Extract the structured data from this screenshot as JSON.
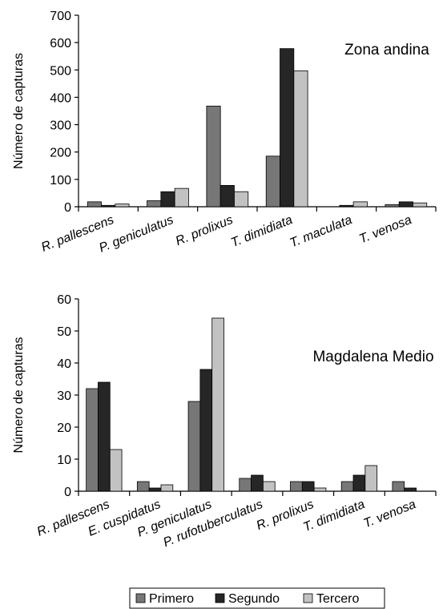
{
  "chart_data": [
    {
      "type": "bar",
      "title": "Zona andina",
      "xlabel": "",
      "ylabel": "Número de capturas",
      "ylim": [
        0,
        700
      ],
      "yticks": [
        0,
        100,
        200,
        300,
        400,
        500,
        600,
        700
      ],
      "categories": [
        "R. pallescens",
        "P. geniculatus",
        "R. prolixus",
        "T. dimidiata",
        "T. maculata",
        "T. venosa"
      ],
      "series": [
        {
          "name": "Primero",
          "values": [
            18,
            22,
            368,
            185,
            0,
            8
          ]
        },
        {
          "name": "Segundo",
          "values": [
            5,
            55,
            78,
            578,
            5,
            18
          ]
        },
        {
          "name": "Tercero",
          "values": [
            10,
            67,
            55,
            497,
            18,
            14
          ]
        }
      ],
      "grid": false
    },
    {
      "type": "bar",
      "title": "Magdalena Medio",
      "xlabel": "",
      "ylabel": "Número de capturas",
      "ylim": [
        0,
        60
      ],
      "yticks": [
        0,
        10,
        20,
        30,
        40,
        50,
        60
      ],
      "categories": [
        "R. pallescens",
        "E. cuspidatus",
        "P. geniculatus",
        "P. rufotuberculatus",
        "R. prolixus",
        "T. dimidiata",
        "T. venosa"
      ],
      "series": [
        {
          "name": "Primero",
          "values": [
            32,
            3,
            28,
            4,
            3,
            3,
            3
          ]
        },
        {
          "name": "Segundo",
          "values": [
            34,
            1,
            38,
            5,
            3,
            5,
            1
          ]
        },
        {
          "name": "Tercero",
          "values": [
            13,
            2,
            54,
            3,
            1,
            8,
            0
          ]
        }
      ],
      "grid": false
    }
  ],
  "legend": {
    "placement": "bottom",
    "items": [
      {
        "label": "Primero",
        "color": "#777777"
      },
      {
        "label": "Segundo",
        "color": "#262626"
      },
      {
        "label": "Tercero",
        "color": "#c2c2c2"
      }
    ]
  }
}
